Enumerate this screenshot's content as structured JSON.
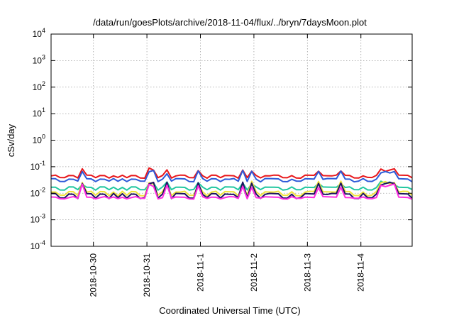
{
  "chart_data": {
    "type": "line",
    "title": "/data/run/goesPlots/archive/2018-11-04/flux/../bryn/7daysMoon.plot",
    "xlabel": "Coordinated Universal Time (UTC)",
    "ylabel": "cSv/day",
    "yscale": "log",
    "ylim": [
      0.0001,
      10000
    ],
    "yticks": [
      {
        "base": "10",
        "exp": "-4",
        "value": 0.0001
      },
      {
        "base": "10",
        "exp": "-3",
        "value": 0.001
      },
      {
        "base": "10",
        "exp": "-2",
        "value": 0.01
      },
      {
        "base": "10",
        "exp": "-1",
        "value": 0.1
      },
      {
        "base": "10",
        "exp": "0",
        "value": 1
      },
      {
        "base": "10",
        "exp": "1",
        "value": 10
      },
      {
        "base": "10",
        "exp": "2",
        "value": 100
      },
      {
        "base": "10",
        "exp": "3",
        "value": 1000
      },
      {
        "base": "10",
        "exp": "4",
        "value": 10000
      }
    ],
    "xlim": [
      "2018-10-29 05:00",
      "2018-11-04 23:00"
    ],
    "xticks": [
      "2018-10-30",
      "2018-10-31",
      "2018-11-1",
      "2018-11-2",
      "2018-11-3",
      "2018-11-4"
    ],
    "grid": true,
    "legend": "none",
    "series": [
      {
        "color": "#e8161a",
        "base": 0.047,
        "spike": 1.7,
        "dip": 0.82,
        "jitter": 0.08
      },
      {
        "color": "#2d5ad8",
        "base": 0.035,
        "spike": 1.9,
        "dip": 0.8,
        "jitter": 0.08
      },
      {
        "color": "#22c7a0",
        "base": 0.017,
        "spike": 1.5,
        "dip": 0.8,
        "jitter": 0.06
      },
      {
        "color": "#f2e33c",
        "base": 0.0115,
        "spike": 2.2,
        "dip": 0.72,
        "jitter": 0.08
      },
      {
        "color": "#1c1460",
        "base": 0.0095,
        "spike": 2.6,
        "dip": 0.7,
        "jitter": 0.1
      },
      {
        "color": "#ff2ee0",
        "base": 0.0072,
        "spike": 2.8,
        "dip": 0.88,
        "jitter": 0.1
      }
    ]
  }
}
